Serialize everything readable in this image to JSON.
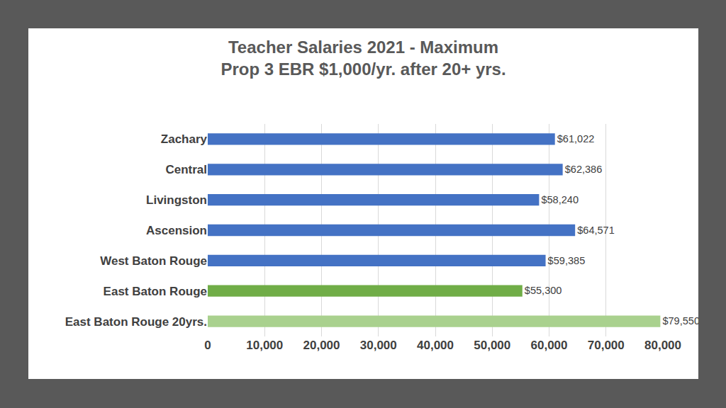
{
  "chart_data": {
    "type": "bar",
    "orientation": "horizontal",
    "title": "Teacher Salaries 2021 - Maximum",
    "subtitle": "Prop 3 EBR $1,000/yr. after 20+ yrs.",
    "categories": [
      "Zachary",
      "Central",
      "Livingston",
      "Ascension",
      "West Baton Rouge",
      "East Baton Rouge",
      "East Baton Rouge 20yrs."
    ],
    "values": [
      61022,
      62386,
      58240,
      64571,
      59385,
      55300,
      79550
    ],
    "value_labels": [
      "$61,022",
      "$62,386",
      "$58,240",
      "$64,571",
      "$59,385",
      "$55,300",
      "$79,550"
    ],
    "data_labels": true,
    "colors": [
      "#4472c4",
      "#4472c4",
      "#4472c4",
      "#4472c4",
      "#4472c4",
      "#70ad47",
      "#a9d18e"
    ],
    "xlim": [
      0,
      80000
    ],
    "xticks": [
      0,
      {
        "value": 10000,
        "label": "10,000"
      },
      {
        "value": 20000,
        "label": "20,000"
      },
      {
        "value": 30000,
        "label": "30,000"
      },
      {
        "value": 40000,
        "label": "40,000"
      },
      {
        "value": 50000,
        "label": "50,000"
      },
      {
        "value": 60000,
        "label": "60,000"
      },
      {
        "value": 70000,
        "label": "70,000"
      },
      {
        "value": 80000,
        "label": "80,000"
      }
    ],
    "grid": true
  }
}
